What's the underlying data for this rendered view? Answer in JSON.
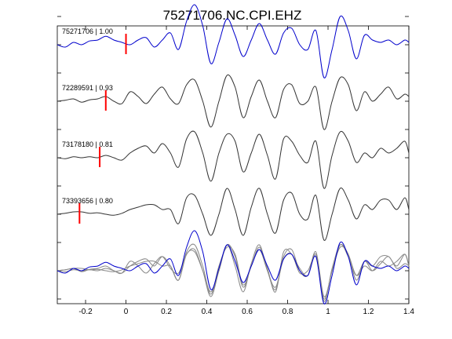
{
  "chart_data": {
    "type": "line",
    "title": "75271706.NC.CPI.EHZ",
    "xlabel": "",
    "ylabel": "",
    "xlim": [
      -0.34,
      1.4
    ],
    "ylim": [
      -0.5,
      5.4
    ],
    "xticks": [
      -0.2,
      0,
      0.2,
      0.4,
      0.6,
      0.8,
      1,
      1.2,
      1.4
    ],
    "xtick_labels": [
      "-0.2",
      "0",
      "0.2",
      "0.4",
      "0.6",
      "0.8",
      "1",
      "1.2",
      "1.4"
    ],
    "grid": false,
    "colors": {
      "reference": "#0000cc",
      "match": "#333333",
      "overlay_match": "#888888",
      "pick": "#ff0000"
    },
    "series": [
      {
        "name": "75271706 | 1.00",
        "offset": 5,
        "pick": 0.0,
        "x": [
          -0.34,
          -0.3,
          -0.26,
          -0.22,
          -0.18,
          -0.14,
          -0.1,
          -0.06,
          -0.02,
          0.02,
          0.06,
          0.1,
          0.14,
          0.18,
          0.22,
          0.26,
          0.3,
          0.34,
          0.38,
          0.42,
          0.46,
          0.5,
          0.54,
          0.58,
          0.62,
          0.66,
          0.7,
          0.74,
          0.78,
          0.82,
          0.86,
          0.9,
          0.94,
          0.98,
          1.02,
          1.06,
          1.1,
          1.14,
          1.18,
          1.22,
          1.26,
          1.3,
          1.34,
          1.38,
          1.4
        ],
        "y": [
          0.0,
          -0.05,
          0.05,
          0.0,
          0.08,
          0.1,
          0.18,
          0.1,
          0.05,
          0.0,
          0.1,
          0.15,
          -0.05,
          0.1,
          0.25,
          -0.1,
          0.5,
          0.85,
          0.4,
          -0.4,
          0.05,
          0.55,
          0.2,
          -0.25,
          0.1,
          0.45,
          0.1,
          -0.2,
          0.25,
          0.35,
          0.0,
          -0.1,
          0.3,
          -0.7,
          -0.1,
          0.6,
          0.3,
          -0.3,
          0.2,
          0.1,
          0.05,
          0.1,
          0.0,
          0.1,
          0.05
        ]
      },
      {
        "name": "72289591 | 0.93",
        "offset": 3.8,
        "pick": -0.1,
        "x": [
          -0.34,
          -0.3,
          -0.26,
          -0.22,
          -0.18,
          -0.14,
          -0.1,
          -0.06,
          -0.02,
          0.02,
          0.06,
          0.1,
          0.14,
          0.18,
          0.22,
          0.26,
          0.3,
          0.34,
          0.38,
          0.42,
          0.46,
          0.5,
          0.54,
          0.58,
          0.62,
          0.66,
          0.7,
          0.74,
          0.78,
          0.82,
          0.86,
          0.9,
          0.94,
          0.98,
          1.02,
          1.06,
          1.1,
          1.14,
          1.18,
          1.22,
          1.26,
          1.3,
          1.34,
          1.38,
          1.4
        ],
        "y": [
          0.0,
          0.02,
          0.05,
          -0.02,
          0.03,
          0.05,
          0.1,
          0.0,
          -0.05,
          0.2,
          0.1,
          -0.05,
          0.15,
          0.3,
          0.05,
          -0.05,
          0.35,
          0.45,
          0.0,
          -0.55,
          0.0,
          0.55,
          0.3,
          -0.35,
          0.1,
          0.45,
          0.0,
          -0.35,
          0.25,
          0.35,
          -0.05,
          0.0,
          0.3,
          -0.6,
          0.0,
          0.5,
          0.35,
          -0.2,
          0.2,
          0.0,
          0.15,
          0.3,
          0.05,
          0.15,
          0.1
        ]
      },
      {
        "name": "73178180 | 0.81",
        "offset": 2.6,
        "pick": -0.13,
        "x": [
          -0.34,
          -0.3,
          -0.26,
          -0.22,
          -0.18,
          -0.14,
          -0.1,
          -0.06,
          -0.02,
          0.02,
          0.06,
          0.1,
          0.14,
          0.18,
          0.22,
          0.26,
          0.3,
          0.34,
          0.38,
          0.42,
          0.46,
          0.5,
          0.54,
          0.58,
          0.62,
          0.66,
          0.7,
          0.74,
          0.78,
          0.82,
          0.86,
          0.9,
          0.94,
          0.98,
          1.02,
          1.06,
          1.1,
          1.14,
          1.18,
          1.22,
          1.26,
          1.3,
          1.34,
          1.38,
          1.4
        ],
        "y": [
          0.0,
          -0.02,
          0.02,
          0.0,
          0.02,
          0.0,
          0.05,
          0.0,
          -0.05,
          0.1,
          0.2,
          0.25,
          0.1,
          0.3,
          0.1,
          -0.2,
          0.4,
          0.55,
          0.1,
          -0.5,
          0.1,
          0.5,
          0.35,
          -0.3,
          0.1,
          0.5,
          0.05,
          -0.45,
          0.4,
          0.35,
          0.05,
          -0.1,
          0.35,
          -0.65,
          0.05,
          0.55,
          0.35,
          -0.1,
          0.1,
          0.0,
          0.2,
          0.1,
          0.2,
          0.35,
          0.1
        ]
      },
      {
        "name": "73393656 | 0.80",
        "offset": 1.4,
        "pick": -0.23,
        "x": [
          -0.34,
          -0.3,
          -0.26,
          -0.22,
          -0.18,
          -0.14,
          -0.1,
          -0.06,
          -0.02,
          0.02,
          0.06,
          0.1,
          0.14,
          0.18,
          0.22,
          0.26,
          0.3,
          0.34,
          0.38,
          0.42,
          0.46,
          0.5,
          0.54,
          0.58,
          0.62,
          0.66,
          0.7,
          0.74,
          0.78,
          0.82,
          0.86,
          0.9,
          0.94,
          0.98,
          1.02,
          1.06,
          1.1,
          1.14,
          1.18,
          1.22,
          1.26,
          1.3,
          1.34,
          1.38,
          1.4
        ],
        "y": [
          0.0,
          0.02,
          0.05,
          0.05,
          0.02,
          0.03,
          0.0,
          -0.02,
          0.02,
          0.1,
          0.15,
          0.2,
          0.2,
          0.1,
          0.1,
          -0.2,
          0.35,
          0.4,
          0.0,
          -0.45,
          0.0,
          0.55,
          0.1,
          -0.45,
          0.15,
          0.55,
          0.0,
          -0.4,
          0.3,
          0.45,
          0.0,
          -0.1,
          0.4,
          -0.55,
          0.0,
          0.55,
          0.3,
          -0.1,
          0.2,
          0.1,
          0.3,
          0.3,
          0.1,
          0.35,
          0.1
        ]
      }
    ],
    "overlay_offset": 0.2
  }
}
